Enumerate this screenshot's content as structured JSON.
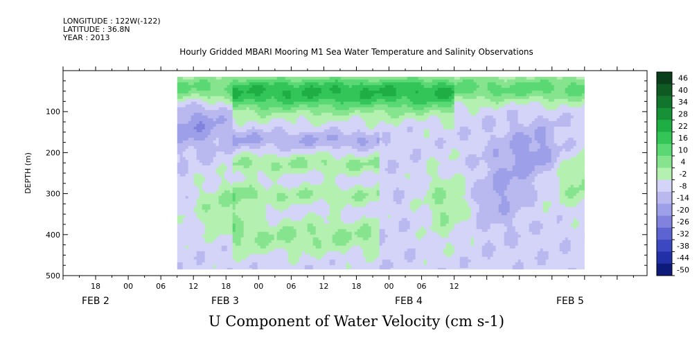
{
  "header": {
    "longitude": "LONGITUDE : 122W(-122)",
    "latitude": "LATITUDE : 36.8N",
    "year": "YEAR : 2013"
  },
  "chart_data": {
    "type": "heatmap",
    "title": "Hourly Gridded MBARI Mooring M1 Sea Water Temperature and Salinity Observations",
    "subtitle": "U Component of Water Velocity (cm s-1)",
    "ylabel": "DEPTH (m)",
    "xlabel": "",
    "ylim": [
      500,
      0
    ],
    "y_ticks": [
      100,
      200,
      300,
      400,
      500
    ],
    "x_hour_ticks": [
      "18",
      "00",
      "06",
      "12",
      "18",
      "00",
      "06",
      "12",
      "18",
      "00",
      "06",
      "12"
    ],
    "x_date_labels": [
      "FEB  2",
      "FEB  3",
      "FEB  4",
      "FEB  5"
    ],
    "data_start_hour": 21,
    "data_end_hour": 96,
    "depth_min": 15,
    "depth_max": 485,
    "colorbar": {
      "levels": [
        48,
        46,
        40,
        34,
        28,
        22,
        16,
        10,
        4,
        -2,
        -8,
        -14,
        -20,
        -26,
        -32,
        -38,
        -44,
        -50
      ],
      "labels": [
        "46",
        "40",
        "34",
        "28",
        "22",
        "16",
        "10",
        "4",
        "-2",
        "-8",
        "-14",
        "-20",
        "-26",
        "-32",
        "-38",
        "-44",
        "-50"
      ],
      "colors": [
        "#0a3d1a",
        "#0e5a22",
        "#11752b",
        "#169137",
        "#1fae43",
        "#33c558",
        "#5ad873",
        "#86e48f",
        "#b4f0b0",
        "#d4d4f8",
        "#b9b9f0",
        "#9d9fe8",
        "#8082de",
        "#5d64d2",
        "#3c47c2",
        "#2230a8",
        "#0d1a7a"
      ]
    },
    "grid": false
  }
}
